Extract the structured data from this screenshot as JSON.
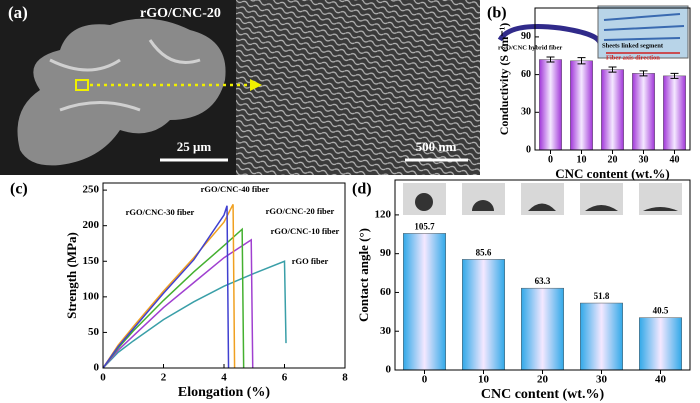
{
  "images": {
    "panel_label": "(a)",
    "title": "rGO/CNC-20",
    "scale_left": "25 μm",
    "scale_right": "500 nm"
  },
  "chart_data": [
    {
      "type": "bar",
      "panel_label": "(b)",
      "xlabel": "CNC content (wt.%)",
      "ylabel": "Conductivity (S cm⁻¹)",
      "categories": [
        "0",
        "10",
        "20",
        "30",
        "40"
      ],
      "values": [
        72,
        71,
        64,
        61,
        59
      ],
      "errors": [
        2,
        2.5,
        2,
        2,
        2
      ],
      "color": "#a035d8",
      "ylim": [
        0,
        113
      ],
      "yticks": [
        0,
        30,
        60,
        90
      ],
      "inset_texts": [
        "rGO/CNC hybrid fiber",
        "Sheets linked segment",
        "Fiber axis direction"
      ]
    },
    {
      "type": "line",
      "panel_label": "(c)",
      "xlabel": "Elongation (%)",
      "ylabel": "Strength (MPa)",
      "xlim": [
        0,
        8
      ],
      "xticks": [
        0,
        2,
        4,
        6,
        8
      ],
      "ylim": [
        0,
        260
      ],
      "yticks": [
        0,
        50,
        100,
        150,
        200,
        250
      ],
      "series": [
        {
          "name": "rGO fiber",
          "color": "#3a9fa8",
          "x": [
            0,
            0.5,
            1,
            2,
            3,
            4,
            5,
            6,
            6.05
          ],
          "values": [
            0,
            22,
            38,
            68,
            93,
            115,
            133,
            150,
            35
          ]
        },
        {
          "name": "rGO/CNC-10 fiber",
          "color": "#a040d0",
          "x": [
            0,
            0.5,
            1,
            2,
            3,
            4,
            4.9,
            4.95
          ],
          "values": [
            0,
            25,
            45,
            85,
            120,
            155,
            180,
            0
          ]
        },
        {
          "name": "rGO/CNC-20 fiber",
          "color": "#44b030",
          "x": [
            0,
            0.5,
            1,
            2,
            3,
            4,
            4.6,
            4.65
          ],
          "values": [
            0,
            28,
            52,
            95,
            135,
            172,
            195,
            0
          ]
        },
        {
          "name": "rGO/CNC-40 fiber",
          "color": "#f0a020",
          "x": [
            0,
            0.5,
            1,
            2,
            3,
            4,
            4.3,
            4.35
          ],
          "values": [
            0,
            32,
            58,
            108,
            155,
            205,
            230,
            0
          ]
        },
        {
          "name": "rGO/CNC-30 fiber",
          "color": "#4040d0",
          "x": [
            0,
            0.5,
            1,
            2,
            3,
            4,
            4.1,
            4.15
          ],
          "values": [
            0,
            30,
            55,
            105,
            152,
            215,
            228,
            0
          ]
        }
      ]
    },
    {
      "type": "bar",
      "panel_label": "(d)",
      "xlabel": "CNC content (wt.%)",
      "ylabel": "Contact angle (°)",
      "categories": [
        "0",
        "10",
        "20",
        "30",
        "40"
      ],
      "values": [
        105.7,
        85.6,
        63.3,
        51.8,
        40.5
      ],
      "color": "#30a8e8",
      "ylim": [
        0,
        147
      ],
      "yticks": [
        0,
        30,
        60,
        90,
        120
      ],
      "show_values": true
    }
  ]
}
